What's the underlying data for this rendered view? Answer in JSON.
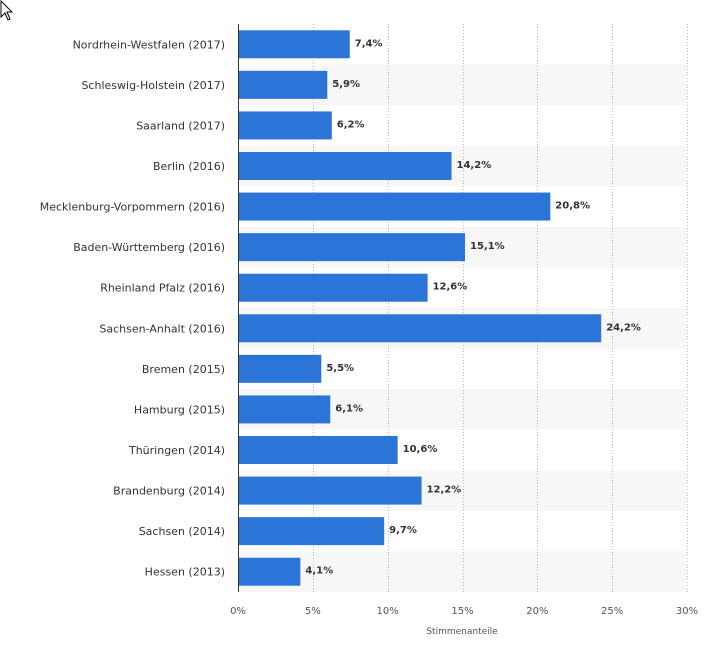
{
  "chart_data": {
    "type": "bar",
    "orientation": "horizontal",
    "categories": [
      "Nordrhein-Westfalen (2017)",
      "Schleswig-Holstein (2017)",
      "Saarland (2017)",
      "Berlin (2016)",
      "Mecklenburg-Vorpommern (2016)",
      "Baden-Württemberg (2016)",
      "Rheinland Pfalz (2016)",
      "Sachsen-Anhalt (2016)",
      "Bremen (2015)",
      "Hamburg (2015)",
      "Thüringen (2014)",
      "Brandenburg (2014)",
      "Sachsen (2014)",
      "Hessen (2013)"
    ],
    "values": [
      7.4,
      5.9,
      6.2,
      14.2,
      20.8,
      15.1,
      12.6,
      24.2,
      5.5,
      6.1,
      10.6,
      12.2,
      9.7,
      4.1
    ],
    "value_labels": [
      "7,4%",
      "5,9%",
      "6,2%",
      "14,2%",
      "20,8%",
      "15,1%",
      "12,6%",
      "24,2%",
      "5,5%",
      "6,1%",
      "10,6%",
      "12,2%",
      "9,7%",
      "4,1%"
    ],
    "xticks": [
      0,
      5,
      10,
      15,
      20,
      25,
      30
    ],
    "xtick_labels": [
      "0%",
      "5%",
      "10%",
      "15%",
      "20%",
      "25%",
      "30%"
    ],
    "xlabel": "Stimmenanteile",
    "xlim": [
      0,
      30
    ],
    "grid": true,
    "legend": false,
    "colors": {
      "bar": "#2b75d9",
      "band": "#f7f7f7",
      "grid": "#bbbbbb",
      "axis": "#333333"
    }
  }
}
